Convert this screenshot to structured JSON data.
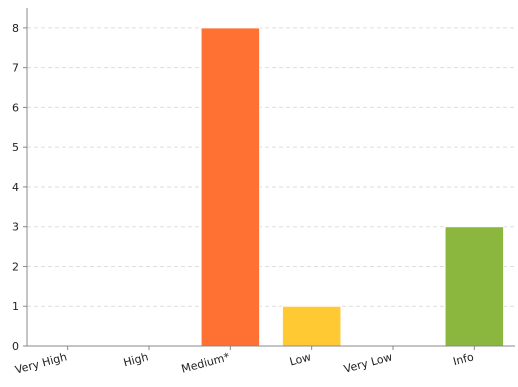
{
  "chart_data": {
    "type": "bar",
    "categories": [
      "Very High",
      "High",
      "Medium*",
      "Low",
      "Very Low",
      "Info"
    ],
    "values": [
      0,
      0,
      8,
      1,
      0,
      3
    ],
    "colors": [
      "#d32f2f",
      "#e64a19",
      "#ff7133",
      "#ffc933",
      "#9ccc65",
      "#8bb73e"
    ],
    "ylim": [
      0,
      8.5
    ],
    "yticks": [
      0,
      1,
      2,
      3,
      4,
      5,
      6,
      7,
      8
    ],
    "grid": true,
    "legend": "none",
    "title": "",
    "xlabel": "",
    "ylabel": ""
  }
}
